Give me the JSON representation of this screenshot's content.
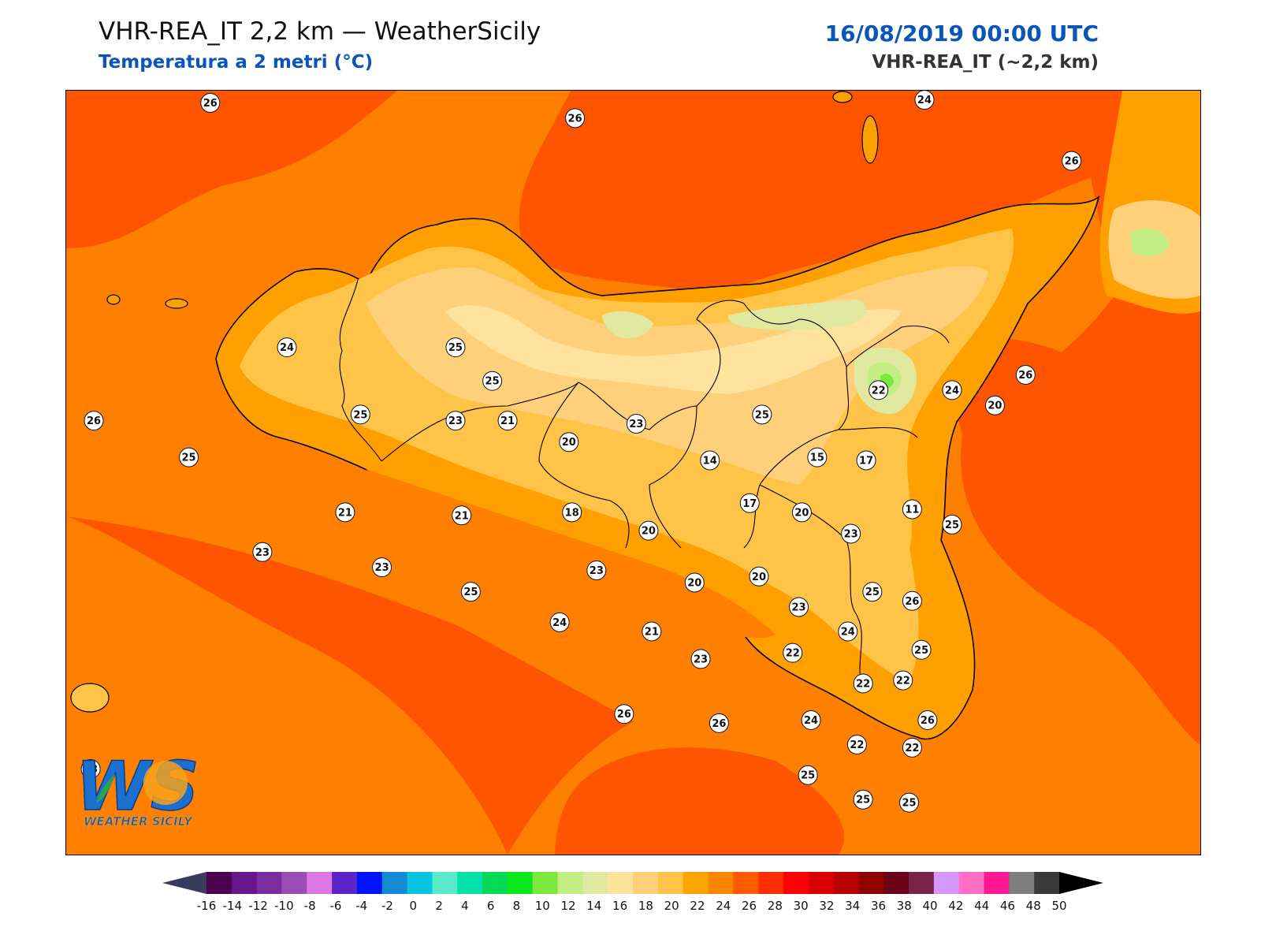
{
  "header": {
    "title": "VHR-REA_IT 2,2 km — WeatherSicily",
    "subtitle": "Temperatura a 2 metri (°C)",
    "datetime": "16/08/2019 00:00 UTC",
    "model": "VHR-REA_IT (~2,2 km)"
  },
  "logo": {
    "letters": "WS",
    "text": "WEATHER SICILY"
  },
  "stations": [
    {
      "v": "26",
      "x": 12.42,
      "y": 38.98
    },
    {
      "v": "24",
      "x": 14.75,
      "y": 38.99
    },
    {
      "v": "26",
      "x": 13.61,
      "y": 38.93
    },
    {
      "v": "26",
      "x": 15.23,
      "y": 38.79
    },
    {
      "v": "26",
      "x": 12.04,
      "y": 37.94
    },
    {
      "v": "25",
      "x": 12.35,
      "y": 37.82
    },
    {
      "v": "24",
      "x": 12.67,
      "y": 38.18
    },
    {
      "v": "25",
      "x": 12.91,
      "y": 37.96
    },
    {
      "v": "25",
      "x": 13.22,
      "y": 38.18
    },
    {
      "v": "25",
      "x": 13.34,
      "y": 38.07
    },
    {
      "v": "23",
      "x": 13.22,
      "y": 37.94
    },
    {
      "v": "21",
      "x": 13.39,
      "y": 37.94
    },
    {
      "v": "20",
      "x": 13.59,
      "y": 37.87
    },
    {
      "v": "23",
      "x": 13.81,
      "y": 37.93
    },
    {
      "v": "14",
      "x": 14.05,
      "y": 37.81
    },
    {
      "v": "25",
      "x": 14.22,
      "y": 37.96
    },
    {
      "v": "15",
      "x": 14.4,
      "y": 37.82
    },
    {
      "v": "17",
      "x": 14.56,
      "y": 37.81
    },
    {
      "v": "22",
      "x": 14.6,
      "y": 38.04
    },
    {
      "v": "24",
      "x": 14.84,
      "y": 38.04
    },
    {
      "v": "26",
      "x": 15.08,
      "y": 38.09
    },
    {
      "v": "20",
      "x": 14.98,
      "y": 37.99
    },
    {
      "v": "11",
      "x": 14.71,
      "y": 37.65
    },
    {
      "v": "25",
      "x": 14.84,
      "y": 37.6
    },
    {
      "v": "21",
      "x": 12.86,
      "y": 37.64
    },
    {
      "v": "21",
      "x": 13.24,
      "y": 37.63
    },
    {
      "v": "17",
      "x": 14.18,
      "y": 37.67
    },
    {
      "v": "18",
      "x": 13.6,
      "y": 37.64
    },
    {
      "v": "20",
      "x": 13.85,
      "y": 37.58
    },
    {
      "v": "20",
      "x": 14.35,
      "y": 37.64
    },
    {
      "v": "23",
      "x": 14.51,
      "y": 37.57
    },
    {
      "v": "23",
      "x": 12.59,
      "y": 37.51
    },
    {
      "v": "23",
      "x": 12.98,
      "y": 37.46
    },
    {
      "v": "23",
      "x": 13.68,
      "y": 37.45
    },
    {
      "v": "20",
      "x": 14.0,
      "y": 37.41
    },
    {
      "v": "20",
      "x": 14.21,
      "y": 37.43
    },
    {
      "v": "23",
      "x": 14.34,
      "y": 37.33
    },
    {
      "v": "25",
      "x": 14.58,
      "y": 37.38
    },
    {
      "v": "26",
      "x": 14.71,
      "y": 37.35
    },
    {
      "v": "25",
      "x": 13.27,
      "y": 37.38
    },
    {
      "v": "24",
      "x": 13.56,
      "y": 37.28
    },
    {
      "v": "21",
      "x": 13.86,
      "y": 37.25
    },
    {
      "v": "24",
      "x": 14.5,
      "y": 37.25
    },
    {
      "v": "22",
      "x": 14.32,
      "y": 37.18
    },
    {
      "v": "23",
      "x": 14.02,
      "y": 37.16
    },
    {
      "v": "25",
      "x": 14.74,
      "y": 37.19
    },
    {
      "v": "22",
      "x": 14.55,
      "y": 37.08
    },
    {
      "v": "22",
      "x": 14.68,
      "y": 37.09
    },
    {
      "v": "26",
      "x": 13.77,
      "y": 36.98
    },
    {
      "v": "26",
      "x": 14.08,
      "y": 36.95
    },
    {
      "v": "24",
      "x": 14.38,
      "y": 36.96
    },
    {
      "v": "26",
      "x": 14.76,
      "y": 36.96
    },
    {
      "v": "22",
      "x": 14.53,
      "y": 36.88
    },
    {
      "v": "22",
      "x": 14.71,
      "y": 36.87
    },
    {
      "v": "25",
      "x": 14.37,
      "y": 36.78
    },
    {
      "v": "25",
      "x": 14.55,
      "y": 36.7
    },
    {
      "v": "25",
      "x": 14.7,
      "y": 36.69
    },
    {
      "v": "23",
      "x": 12.03,
      "y": 36.8
    }
  ],
  "colorbar": {
    "ticks": [
      "-16",
      "-14",
      "-12",
      "-10",
      "-8",
      "-6",
      "-4",
      "-2",
      "0",
      "2",
      "4",
      "6",
      "8",
      "10",
      "12",
      "14",
      "16",
      "18",
      "20",
      "22",
      "24",
      "26",
      "28",
      "30",
      "32",
      "34",
      "36",
      "38",
      "40",
      "42",
      "44",
      "46",
      "48",
      "50"
    ],
    "colors": [
      "#4b0050",
      "#69158a",
      "#7b2ea0",
      "#9a4db5",
      "#dd77e6",
      "#5b24c9",
      "#0013ff",
      "#1588d6",
      "#08c4e0",
      "#59ebc9",
      "#06e1a6",
      "#07da56",
      "#0ee71f",
      "#7ce83b",
      "#c2ee83",
      "#e1e9a1",
      "#ffe39d",
      "#ffcf7a",
      "#ffc447",
      "#ffa500",
      "#ff8400",
      "#ff5a00",
      "#ff2d00",
      "#ff0000",
      "#da0000",
      "#b90000",
      "#910000",
      "#6b0019",
      "#7b244a",
      "#d796ff",
      "#ff70c4",
      "#ff1894",
      "#7e7e7e",
      "#3a3a3a"
    ],
    "under_color": "#3a3a5a",
    "over_color": "#000000"
  },
  "colors": {
    "sea_hot": "#ff5500",
    "sea": "#ff8000",
    "land_24": "#ffa000",
    "land_22": "#ffc447",
    "land_20": "#ffcf7a",
    "land_18": "#ffe39d",
    "land_14": "#e1e9a1",
    "land_12": "#c2ee83",
    "land_10": "#7ce83b",
    "accent_blue": "#0a55b8"
  }
}
